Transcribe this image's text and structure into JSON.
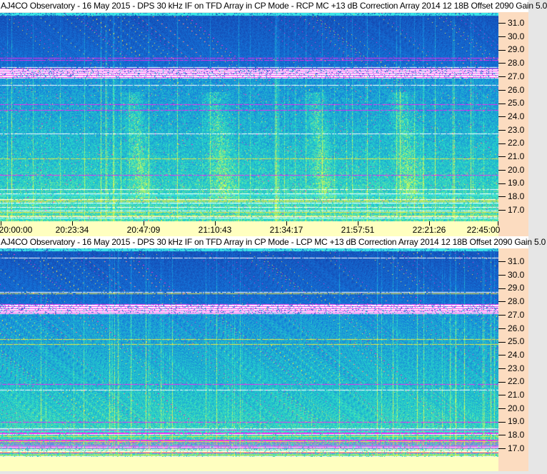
{
  "panels": [
    {
      "title": "AJ4CO Observatory - 16 May 2015 - DPS 30 kHz IF on TFD Array in CP Mode - RCP  MC +13 dB   Correction Array 2014 12 18B   Offset 2090   Gain 5.0",
      "polarization": "RCP"
    },
    {
      "title": "AJ4CO Observatory - 16 May 2015 - DPS 30 kHz IF on TFD Array in CP Mode - LCP  MC +13 dB   Correction Array 2014 12 18B   Offset 2090   Gain 5.0",
      "polarization": "LCP"
    }
  ],
  "freq_ticks": [
    "31.0",
    "30.0",
    "29.0",
    "28.0",
    "27.0",
    "26.0",
    "25.0",
    "24.0",
    "23.0",
    "22.0",
    "21.0",
    "20.0",
    "19.0",
    "18.0",
    "17.0"
  ],
  "time_ticks": [
    "20:00:00",
    "20:23:34",
    "20:47:09",
    "21:10:43",
    "21:34:17",
    "21:57:51",
    "22:21:26",
    "22:45:00"
  ],
  "colors": {
    "background_low": "#10289a",
    "background_high": "#2a7ad8",
    "axis_freq_bg": "#fcdcc0",
    "axis_time_bg": "#ffffc0"
  }
}
